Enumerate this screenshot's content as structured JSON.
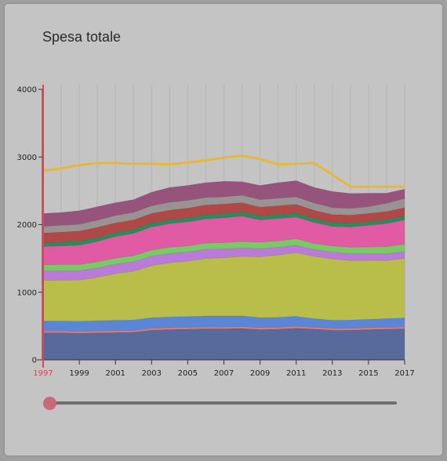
{
  "title": "Spesa totale",
  "slider": {
    "value": 1997,
    "min": 1997,
    "max": 2017
  },
  "chart_data": {
    "type": "area",
    "stacked": true,
    "x": [
      1997,
      1998,
      1999,
      2000,
      2001,
      2002,
      2003,
      2004,
      2005,
      2006,
      2007,
      2008,
      2009,
      2010,
      2011,
      2012,
      2013,
      2014,
      2015,
      2016,
      2017
    ],
    "xticks": [
      "1997",
      "1999",
      "2001",
      "2003",
      "2005",
      "2007",
      "2009",
      "2011",
      "2013",
      "2015",
      "2017"
    ],
    "yticks": [
      "0",
      "1000",
      "2000",
      "3000",
      "4000"
    ],
    "ylim": [
      0,
      4000
    ],
    "highlight_x": 1997,
    "highlight_color": "#e0405a",
    "series": [
      {
        "color": "#58699b",
        "values": [
          400,
          400,
          395,
          400,
          405,
          410,
          440,
          450,
          455,
          460,
          460,
          465,
          450,
          455,
          470,
          455,
          440,
          440,
          450,
          455,
          460
        ]
      },
      {
        "color": "#e57a7a",
        "values": [
          25,
          25,
          25,
          25,
          25,
          25,
          25,
          25,
          25,
          25,
          25,
          25,
          25,
          25,
          25,
          25,
          25,
          25,
          25,
          25,
          25
        ]
      },
      {
        "color": "#5b86d6",
        "values": [
          150,
          150,
          150,
          155,
          155,
          155,
          160,
          160,
          160,
          165,
          165,
          160,
          150,
          150,
          150,
          130,
          120,
          125,
          125,
          130,
          135
        ]
      },
      {
        "color": "#b9be4a",
        "values": [
          600,
          605,
          610,
          640,
          690,
          720,
          770,
          800,
          820,
          850,
          860,
          880,
          900,
          920,
          940,
          920,
          910,
          880,
          870,
          860,
          880
        ]
      },
      {
        "color": "#ba7ad8",
        "values": [
          140,
          140,
          140,
          140,
          140,
          140,
          140,
          140,
          135,
          135,
          130,
          125,
          120,
          115,
          110,
          100,
          100,
          100,
          100,
          100,
          100
        ]
      },
      {
        "color": "#7ac866",
        "values": [
          90,
          90,
          90,
          90,
          90,
          90,
          90,
          90,
          90,
          90,
          95,
          95,
          95,
          95,
          95,
          90,
          90,
          95,
          100,
          105,
          110
        ]
      },
      {
        "color": "#e05aa4",
        "values": [
          270,
          275,
          285,
          300,
          320,
          330,
          340,
          350,
          355,
          360,
          365,
          375,
          330,
          330,
          320,
          310,
          290,
          300,
          320,
          340,
          360
        ]
      },
      {
        "color": "#2f8a5a",
        "values": [
          60,
          60,
          60,
          60,
          60,
          60,
          60,
          60,
          60,
          65,
          65,
          65,
          60,
          60,
          60,
          60,
          55,
          55,
          55,
          60,
          60
        ]
      },
      {
        "color": "#b04848",
        "values": [
          140,
          145,
          150,
          150,
          140,
          140,
          140,
          140,
          145,
          140,
          140,
          135,
          130,
          130,
          130,
          120,
          120,
          120,
          120,
          120,
          120
        ]
      },
      {
        "color": "#9a9393",
        "values": [
          100,
          100,
          100,
          105,
          110,
          110,
          115,
          115,
          115,
          110,
          105,
          110,
          110,
          110,
          110,
          110,
          100,
          100,
          100,
          120,
          135
        ]
      },
      {
        "color": "#96537b",
        "values": [
          190,
          190,
          200,
          200,
          190,
          190,
          200,
          220,
          220,
          220,
          230,
          200,
          210,
          230,
          240,
          230,
          240,
          220,
          200,
          150,
          140
        ]
      }
    ],
    "total_line": {
      "color": "#e6b83a",
      "values": [
        2800,
        2830,
        2880,
        2910,
        2910,
        2900,
        2900,
        2890,
        2920,
        2950,
        2990,
        3020,
        2970,
        2890,
        2900,
        2910,
        2740,
        2560,
        2560,
        2560,
        2560
      ]
    }
  }
}
